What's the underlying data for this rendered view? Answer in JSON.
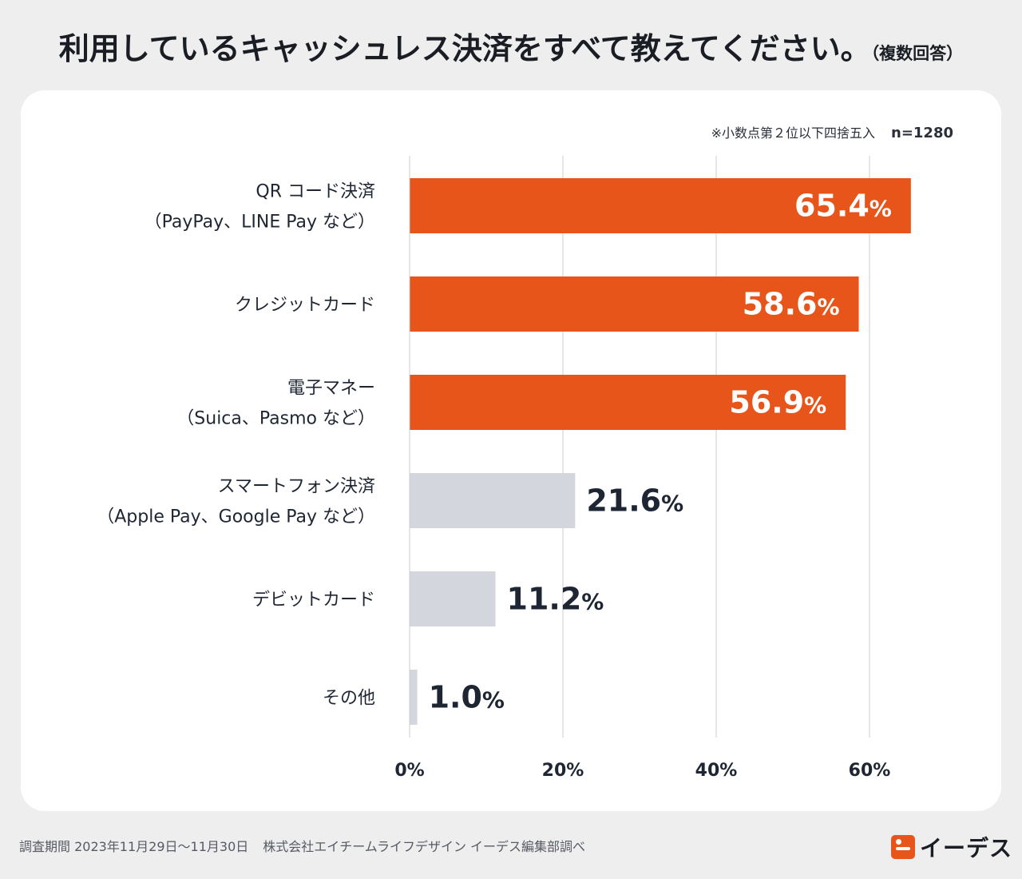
{
  "title": {
    "main": "利用しているキャッシュレス決済をすべて教えてください。",
    "sub": "（複数回答）"
  },
  "note": {
    "rounding": "※小数点第２位以下四捨五入",
    "n": "n=1280"
  },
  "colors": {
    "highlight": "#e8551a",
    "muted": "#d3d6dc",
    "grid": "#c8ccd2",
    "label_dark": "#1f2633"
  },
  "chart_data": {
    "type": "bar",
    "orientation": "horizontal",
    "title": "利用しているキャッシュレス決済をすべて教えてください。（複数回答）",
    "categories": [
      [
        "QR コード決済",
        "（PayPay、LINE Pay など）"
      ],
      [
        "クレジットカード"
      ],
      [
        "電子マネー",
        "（Suica、Pasmo など）"
      ],
      [
        "スマートフォン決済",
        "（Apple Pay、Google Pay など）"
      ],
      [
        "デビットカード"
      ],
      [
        "その他"
      ]
    ],
    "values": [
      65.4,
      58.6,
      56.9,
      21.6,
      11.2,
      1.0
    ],
    "value_labels": [
      "65.4",
      "58.6",
      "56.9",
      "21.6",
      "11.2",
      "1.0"
    ],
    "unit": "%",
    "highlighted": [
      true,
      true,
      true,
      false,
      false,
      false
    ],
    "xlim": [
      0,
      70
    ],
    "xticks": [
      0,
      20,
      40,
      60
    ],
    "xtick_labels": [
      "0%",
      "20%",
      "40%",
      "60%"
    ],
    "grid": true,
    "legend": "none"
  },
  "footer": {
    "period": "調査期間 2023年11月29日〜11月30日",
    "source": "株式会社エイチームライフデザイン イーデス編集部調べ",
    "brand": "イーデス"
  }
}
